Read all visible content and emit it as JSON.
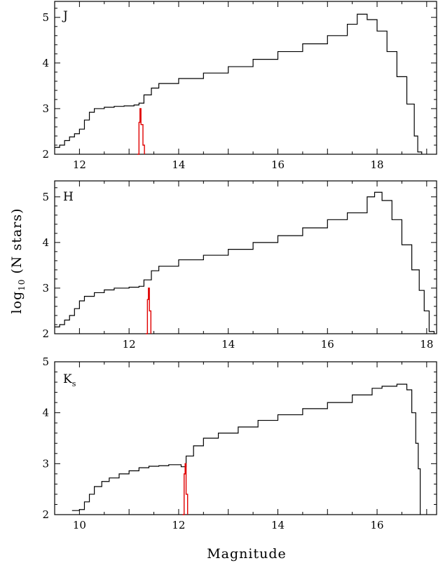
{
  "chart_data": [
    {
      "type": "step-histogram",
      "band": "J",
      "band_subscript": "",
      "xlim": [
        11.5,
        19.2
      ],
      "ylim": [
        2,
        5.35
      ],
      "xticks": [
        12,
        14,
        16,
        18
      ],
      "yticks": [
        2,
        3,
        4,
        5
      ],
      "series": [
        {
          "color": "#000000",
          "points": [
            [
              11.5,
              2.15
            ],
            [
              11.6,
              2.2
            ],
            [
              11.7,
              2.3
            ],
            [
              11.8,
              2.38
            ],
            [
              11.9,
              2.45
            ],
            [
              12.0,
              2.55
            ],
            [
              12.1,
              2.75
            ],
            [
              12.2,
              2.92
            ],
            [
              12.3,
              3.0
            ],
            [
              12.5,
              3.03
            ],
            [
              12.7,
              3.05
            ],
            [
              12.9,
              3.06
            ],
            [
              13.1,
              3.08
            ],
            [
              13.2,
              3.12
            ],
            [
              13.3,
              3.3
            ],
            [
              13.45,
              3.45
            ],
            [
              13.6,
              3.55
            ],
            [
              14.0,
              3.66
            ],
            [
              14.5,
              3.78
            ],
            [
              15.0,
              3.92
            ],
            [
              15.5,
              4.08
            ],
            [
              16.0,
              4.25
            ],
            [
              16.5,
              4.42
            ],
            [
              17.0,
              4.6
            ],
            [
              17.4,
              4.85
            ],
            [
              17.6,
              5.07
            ],
            [
              17.8,
              4.95
            ],
            [
              18.0,
              4.7
            ],
            [
              18.2,
              4.25
            ],
            [
              18.4,
              3.7
            ],
            [
              18.6,
              3.1
            ],
            [
              18.75,
              2.4
            ],
            [
              18.82,
              2.05
            ],
            [
              18.9,
              2.0
            ]
          ]
        },
        {
          "color": "#e00000",
          "points": [
            [
              13.17,
              2.0
            ],
            [
              13.2,
              2.7
            ],
            [
              13.22,
              3.0
            ],
            [
              13.24,
              2.65
            ],
            [
              13.28,
              2.2
            ],
            [
              13.31,
              2.0
            ]
          ]
        }
      ]
    },
    {
      "type": "step-histogram",
      "band": "H",
      "band_subscript": "",
      "xlim": [
        10.5,
        18.2
      ],
      "ylim": [
        2,
        5.35
      ],
      "xticks": [
        12,
        14,
        16,
        18
      ],
      "yticks": [
        2,
        3,
        4,
        5
      ],
      "series": [
        {
          "color": "#000000",
          "points": [
            [
              10.5,
              2.15
            ],
            [
              10.6,
              2.2
            ],
            [
              10.7,
              2.3
            ],
            [
              10.8,
              2.4
            ],
            [
              10.9,
              2.55
            ],
            [
              11.0,
              2.72
            ],
            [
              11.1,
              2.82
            ],
            [
              11.3,
              2.9
            ],
            [
              11.5,
              2.96
            ],
            [
              11.7,
              3.0
            ],
            [
              12.0,
              3.02
            ],
            [
              12.2,
              3.04
            ],
            [
              12.3,
              3.18
            ],
            [
              12.45,
              3.38
            ],
            [
              12.6,
              3.48
            ],
            [
              13.0,
              3.62
            ],
            [
              13.5,
              3.72
            ],
            [
              14.0,
              3.85
            ],
            [
              14.5,
              4.0
            ],
            [
              15.0,
              4.15
            ],
            [
              15.5,
              4.32
            ],
            [
              16.0,
              4.5
            ],
            [
              16.4,
              4.65
            ],
            [
              16.8,
              5.0
            ],
            [
              16.95,
              5.1
            ],
            [
              17.1,
              4.92
            ],
            [
              17.3,
              4.5
            ],
            [
              17.5,
              3.95
            ],
            [
              17.7,
              3.4
            ],
            [
              17.85,
              2.95
            ],
            [
              17.95,
              2.5
            ],
            [
              18.05,
              2.05
            ],
            [
              18.15,
              2.0
            ]
          ]
        },
        {
          "color": "#e00000",
          "points": [
            [
              12.34,
              2.0
            ],
            [
              12.37,
              2.75
            ],
            [
              12.39,
              3.0
            ],
            [
              12.41,
              2.5
            ],
            [
              12.44,
              2.0
            ]
          ]
        }
      ]
    },
    {
      "type": "step-histogram",
      "band": "K",
      "band_subscript": "s",
      "xlim": [
        9.5,
        17.2
      ],
      "ylim": [
        2,
        5.0
      ],
      "xticks": [
        10,
        12,
        14,
        16
      ],
      "yticks": [
        2,
        3,
        4,
        5
      ],
      "series": [
        {
          "color": "#000000",
          "points": [
            [
              9.85,
              2.08
            ],
            [
              10.0,
              2.1
            ],
            [
              10.1,
              2.25
            ],
            [
              10.2,
              2.4
            ],
            [
              10.3,
              2.55
            ],
            [
              10.45,
              2.65
            ],
            [
              10.6,
              2.72
            ],
            [
              10.8,
              2.8
            ],
            [
              11.0,
              2.86
            ],
            [
              11.2,
              2.92
            ],
            [
              11.4,
              2.95
            ],
            [
              11.6,
              2.96
            ],
            [
              11.8,
              2.98
            ],
            [
              12.0,
              2.98
            ],
            [
              12.05,
              2.94
            ],
            [
              12.15,
              3.15
            ],
            [
              12.3,
              3.35
            ],
            [
              12.5,
              3.5
            ],
            [
              12.8,
              3.6
            ],
            [
              13.2,
              3.72
            ],
            [
              13.6,
              3.85
            ],
            [
              14.0,
              3.96
            ],
            [
              14.5,
              4.08
            ],
            [
              15.0,
              4.2
            ],
            [
              15.5,
              4.35
            ],
            [
              15.9,
              4.48
            ],
            [
              16.1,
              4.52
            ],
            [
              16.4,
              4.56
            ],
            [
              16.6,
              4.45
            ],
            [
              16.7,
              4.0
            ],
            [
              16.78,
              3.4
            ],
            [
              16.83,
              2.9
            ],
            [
              16.87,
              2.0
            ]
          ]
        },
        {
          "color": "#e00000",
          "points": [
            [
              12.08,
              2.0
            ],
            [
              12.11,
              2.8
            ],
            [
              12.13,
              3.0
            ],
            [
              12.15,
              2.4
            ],
            [
              12.18,
              2.0
            ]
          ]
        }
      ]
    }
  ],
  "xlabel": "Magnitude",
  "ylabel": "log",
  "ylabel_sub": "10",
  "ylabel_rest": " (N stars)"
}
